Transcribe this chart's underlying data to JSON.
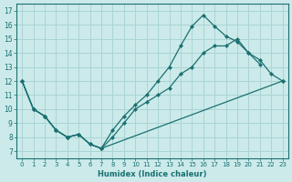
{
  "xlabel": "Humidex (Indice chaleur)",
  "xlim": [
    -0.5,
    23.5
  ],
  "ylim": [
    6.5,
    17.5
  ],
  "xticks": [
    0,
    1,
    2,
    3,
    4,
    5,
    6,
    7,
    8,
    9,
    10,
    11,
    12,
    13,
    14,
    15,
    16,
    17,
    18,
    19,
    20,
    21,
    22,
    23
  ],
  "yticks": [
    7,
    8,
    9,
    10,
    11,
    12,
    13,
    14,
    15,
    16,
    17
  ],
  "bg_color": "#cceaea",
  "grid_color": "#aad4d4",
  "line_color": "#1a7070",
  "line1_x": [
    0,
    1,
    2,
    3,
    4,
    5,
    6,
    7,
    8,
    9,
    10,
    11,
    12,
    13,
    14,
    15,
    16,
    17,
    18,
    19,
    20,
    21
  ],
  "line1_y": [
    12,
    10,
    9.5,
    8.5,
    8.0,
    8.2,
    7.5,
    7.2,
    8.5,
    9.5,
    10.3,
    11.0,
    12.0,
    13.0,
    14.5,
    15.9,
    16.7,
    15.9,
    15.2,
    14.8,
    14.0,
    13.2
  ],
  "line2_x": [
    0,
    1,
    2,
    3,
    4,
    5,
    6,
    7,
    8,
    9,
    10,
    11,
    12,
    13,
    14,
    15,
    16,
    17,
    18,
    19,
    20,
    21,
    22,
    23
  ],
  "line2_y": [
    12,
    10,
    9.5,
    8.5,
    8.0,
    8.2,
    7.5,
    7.2,
    8.0,
    9.0,
    10.0,
    10.5,
    11.0,
    11.5,
    12.5,
    13.0,
    14.0,
    14.5,
    14.5,
    15.0,
    14.0,
    13.5,
    12.5,
    12.0
  ],
  "line3_x": [
    0,
    1,
    2,
    3,
    4,
    5,
    6,
    7,
    22,
    23
  ],
  "line3_y": [
    12,
    10,
    9.5,
    8.5,
    8.0,
    8.2,
    7.5,
    7.2,
    12.0,
    12.0
  ]
}
